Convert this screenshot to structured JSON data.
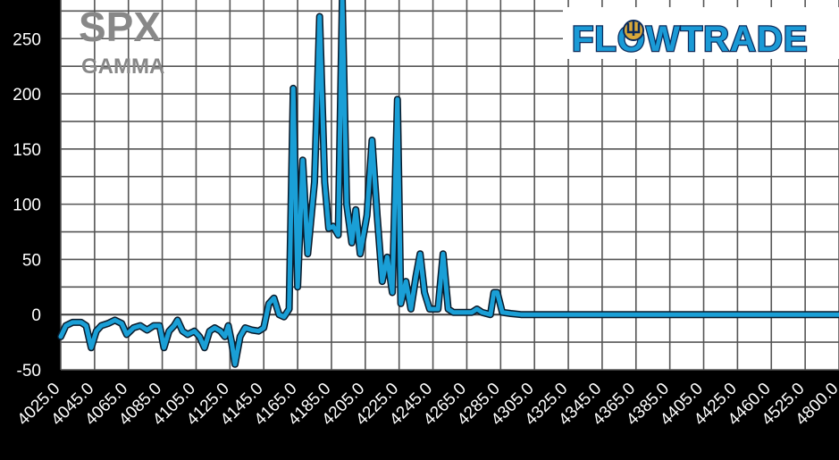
{
  "title": "SPX",
  "subtitle": "GAMMA",
  "logo": {
    "text": "FLOWTRADE",
    "icon": "trident-icon"
  },
  "colors": {
    "line": "#1a9fd6",
    "background": "#000000",
    "plot": "#ffffff",
    "grid": "#555555",
    "title": "#888888"
  },
  "chart_data": {
    "type": "line",
    "title": "SPX",
    "subtitle": "GAMMA",
    "xlabel": "",
    "ylabel": "",
    "ylim": [
      -50,
      285
    ],
    "yticks": [
      -50,
      0,
      50,
      100,
      150,
      200,
      250
    ],
    "xtick_labels": [
      "4025.0",
      "4045.0",
      "4065.0",
      "4085.0",
      "4105.0",
      "4125.0",
      "4145.0",
      "4165.0",
      "4185.0",
      "4205.0",
      "4225.0",
      "4245.0",
      "4265.0",
      "4285.0",
      "4305.0",
      "4325.0",
      "4345.0",
      "4365.0",
      "4385.0",
      "4405.0",
      "4425.0",
      "4460.0",
      "4525.0",
      "4800.0"
    ],
    "grid": true,
    "series": [
      {
        "values": [
          [
            0,
            -20
          ],
          [
            0.15,
            -10
          ],
          [
            0.35,
            -7
          ],
          [
            0.6,
            -7
          ],
          [
            0.75,
            -10
          ],
          [
            0.9,
            -30
          ],
          [
            1.05,
            -15
          ],
          [
            1.2,
            -10
          ],
          [
            1.4,
            -8
          ],
          [
            1.6,
            -5
          ],
          [
            1.8,
            -8
          ],
          [
            1.95,
            -18
          ],
          [
            2.15,
            -12
          ],
          [
            2.35,
            -10
          ],
          [
            2.55,
            -14
          ],
          [
            2.75,
            -10
          ],
          [
            2.92,
            -10
          ],
          [
            3.05,
            -30
          ],
          [
            3.2,
            -15
          ],
          [
            3.35,
            -10
          ],
          [
            3.45,
            -5
          ],
          [
            3.6,
            -15
          ],
          [
            3.75,
            -18
          ],
          [
            3.95,
            -15
          ],
          [
            4.1,
            -20
          ],
          [
            4.25,
            -30
          ],
          [
            4.4,
            -15
          ],
          [
            4.55,
            -12
          ],
          [
            4.72,
            -15
          ],
          [
            4.85,
            -20
          ],
          [
            4.95,
            -10
          ],
          [
            5.05,
            -25
          ],
          [
            5.15,
            -45
          ],
          [
            5.3,
            -20
          ],
          [
            5.45,
            -12
          ],
          [
            5.65,
            -14
          ],
          [
            5.85,
            -15
          ],
          [
            6.0,
            -12
          ],
          [
            6.15,
            10
          ],
          [
            6.3,
            15
          ],
          [
            6.45,
            0
          ],
          [
            6.6,
            -2
          ],
          [
            6.75,
            5
          ],
          [
            6.87,
            205
          ],
          [
            7.0,
            25
          ],
          [
            7.15,
            140
          ],
          [
            7.3,
            55
          ],
          [
            7.5,
            120
          ],
          [
            7.65,
            270
          ],
          [
            7.8,
            120
          ],
          [
            7.92,
            78
          ],
          [
            8.05,
            80
          ],
          [
            8.2,
            72
          ],
          [
            8.32,
            285
          ],
          [
            8.45,
            100
          ],
          [
            8.6,
            65
          ],
          [
            8.72,
            95
          ],
          [
            8.85,
            55
          ],
          [
            9.05,
            90
          ],
          [
            9.2,
            158
          ],
          [
            9.35,
            90
          ],
          [
            9.5,
            30
          ],
          [
            9.65,
            52
          ],
          [
            9.8,
            20
          ],
          [
            9.95,
            195
          ],
          [
            10.05,
            10
          ],
          [
            10.2,
            30
          ],
          [
            10.35,
            5
          ],
          [
            10.5,
            35
          ],
          [
            10.62,
            55
          ],
          [
            10.75,
            20
          ],
          [
            10.9,
            5
          ],
          [
            11.05,
            5
          ],
          [
            11.15,
            5
          ],
          [
            11.3,
            55
          ],
          [
            11.45,
            5
          ],
          [
            11.6,
            2
          ],
          [
            11.75,
            2
          ],
          [
            12.0,
            2
          ],
          [
            12.15,
            2
          ],
          [
            12.3,
            5
          ],
          [
            12.45,
            2
          ],
          [
            12.7,
            0
          ],
          [
            12.8,
            20
          ],
          [
            12.9,
            20
          ],
          [
            13.05,
            2
          ],
          [
            13.3,
            1
          ],
          [
            13.6,
            0
          ],
          [
            14.0,
            0
          ],
          [
            15.0,
            0
          ],
          [
            18.0,
            0
          ],
          [
            23.0,
            0
          ]
        ]
      }
    ]
  }
}
